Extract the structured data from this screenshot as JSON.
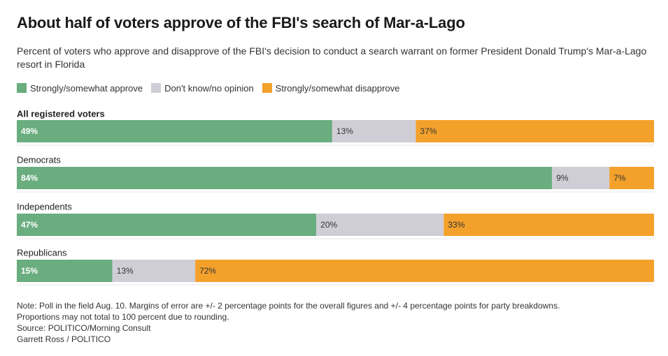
{
  "title": "About half of voters approve of the FBI's search of Mar-a-Lago",
  "subtitle": "Percent of voters who approve and disapprove of the FBI's decision to conduct a search warrant on former President Donald Trump's Mar-a-Lago resort in Florida",
  "colors": {
    "approve": "#6aad7f",
    "unsure": "#cfced6",
    "disapprove": "#f4a12c",
    "label_on_color": "#ffffff",
    "label_on_light": "#333333"
  },
  "chart_data": {
    "type": "bar",
    "orientation": "horizontal",
    "stacked": true,
    "categories": [
      "All registered voters",
      "Democrats",
      "Independents",
      "Republicans"
    ],
    "series": [
      {
        "name": "Strongly/somewhat approve",
        "values": [
          49,
          84,
          47,
          15
        ]
      },
      {
        "name": "Don't know/no opinion",
        "values": [
          13,
          9,
          20,
          13
        ]
      },
      {
        "name": "Strongly/somewhat disapprove",
        "values": [
          37,
          7,
          33,
          72
        ]
      }
    ],
    "value_suffix": "%",
    "legend_position": "top-left",
    "grid": false
  },
  "notes": {
    "note_line1": "Note: Poll in the field Aug. 10. Margins of error are +/- 2 percentage points for the overall figures and +/- 4 percentage points for party breakdowns.",
    "note_line2": "Proportions may not total to 100 percent due to rounding.",
    "source": "Source: POLITICO/Morning Consult",
    "credit": "Garrett Ross / POLITICO"
  }
}
